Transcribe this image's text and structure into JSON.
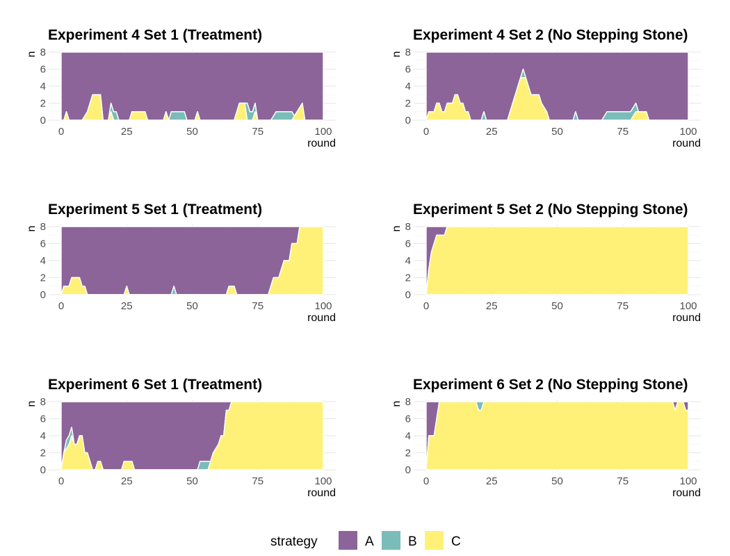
{
  "colors": {
    "A": "#8C6499",
    "B": "#7ABCB8",
    "C": "#FFF178"
  },
  "legend": {
    "title": "strategy",
    "items": [
      "A",
      "B",
      "C"
    ]
  },
  "chart_data": [
    {
      "type": "area",
      "title": "Experiment 4 Set 1 (Treatment)",
      "xlabel": "round",
      "ylabel": "n",
      "xlim": [
        0,
        100
      ],
      "ylim": [
        0,
        8
      ],
      "xticks": [
        "0",
        "25",
        "50",
        "75",
        "100"
      ],
      "yticks": [
        "0",
        "2",
        "4",
        "6",
        "8"
      ],
      "total": 8,
      "series": [
        {
          "name": "C",
          "points": [
            [
              0,
              0
            ],
            [
              1,
              0
            ],
            [
              2,
              1
            ],
            [
              3,
              0
            ],
            [
              8,
              0
            ],
            [
              10,
              1
            ],
            [
              12,
              3
            ],
            [
              15,
              3
            ],
            [
              16,
              0
            ],
            [
              18,
              0
            ],
            [
              19,
              1
            ],
            [
              20,
              0
            ],
            [
              26,
              0
            ],
            [
              27,
              1
            ],
            [
              32,
              1
            ],
            [
              33,
              0
            ],
            [
              39,
              0
            ],
            [
              40,
              1
            ],
            [
              41,
              0
            ],
            [
              51,
              0
            ],
            [
              52,
              1
            ],
            [
              53,
              0
            ],
            [
              66,
              0
            ],
            [
              68,
              2
            ],
            [
              70,
              2
            ],
            [
              71,
              0
            ],
            [
              73,
              0
            ],
            [
              74,
              1
            ],
            [
              75,
              0
            ],
            [
              88,
              0
            ],
            [
              90,
              1
            ],
            [
              92,
              2
            ],
            [
              93,
              0
            ],
            [
              100,
              0
            ]
          ]
        },
        {
          "name": "B",
          "points": [
            [
              0,
              0
            ],
            [
              18,
              0
            ],
            [
              19,
              1
            ],
            [
              21,
              1
            ],
            [
              22,
              0
            ],
            [
              41,
              0
            ],
            [
              42,
              1
            ],
            [
              47,
              1
            ],
            [
              48,
              0
            ],
            [
              70,
              0
            ],
            [
              71,
              2
            ],
            [
              72,
              1
            ],
            [
              74,
              1
            ],
            [
              75,
              0
            ],
            [
              80,
              0
            ],
            [
              82,
              1
            ],
            [
              88,
              1
            ],
            [
              89,
              0
            ],
            [
              100,
              0
            ]
          ]
        }
      ]
    },
    {
      "type": "area",
      "title": "Experiment 4 Set 2 (No Stepping Stone)",
      "xlabel": "round",
      "ylabel": "n",
      "xlim": [
        0,
        100
      ],
      "ylim": [
        0,
        8
      ],
      "xticks": [
        "0",
        "25",
        "50",
        "75",
        "100"
      ],
      "yticks": [
        "0",
        "2",
        "4",
        "6",
        "8"
      ],
      "total": 8,
      "series": [
        {
          "name": "C",
          "points": [
            [
              0,
              0
            ],
            [
              1,
              1
            ],
            [
              3,
              1
            ],
            [
              4,
              2
            ],
            [
              5,
              2
            ],
            [
              6,
              1
            ],
            [
              7,
              1
            ],
            [
              8,
              2
            ],
            [
              10,
              2
            ],
            [
              11,
              3
            ],
            [
              12,
              3
            ],
            [
              13,
              2
            ],
            [
              14,
              2
            ],
            [
              15,
              1
            ],
            [
              16,
              1
            ],
            [
              17,
              0
            ],
            [
              31,
              0
            ],
            [
              33,
              2
            ],
            [
              35,
              4
            ],
            [
              36,
              5
            ],
            [
              38,
              5
            ],
            [
              40,
              3
            ],
            [
              43,
              3
            ],
            [
              44,
              2
            ],
            [
              46,
              1
            ],
            [
              47,
              0
            ],
            [
              78,
              0
            ],
            [
              80,
              1
            ],
            [
              84,
              1
            ],
            [
              85,
              0
            ],
            [
              100,
              0
            ]
          ]
        },
        {
          "name": "B",
          "points": [
            [
              0,
              0
            ],
            [
              21,
              0
            ],
            [
              22,
              1
            ],
            [
              23,
              0
            ],
            [
              36,
              0
            ],
            [
              37,
              1
            ],
            [
              38,
              0
            ],
            [
              56,
              0
            ],
            [
              57,
              1
            ],
            [
              58,
              0
            ],
            [
              67,
              0
            ],
            [
              69,
              1
            ],
            [
              80,
              1
            ],
            [
              81,
              0
            ],
            [
              100,
              0
            ]
          ]
        }
      ]
    },
    {
      "type": "area",
      "title": "Experiment 5 Set 1 (Treatment)",
      "xlabel": "round",
      "ylabel": "n",
      "xlim": [
        0,
        100
      ],
      "ylim": [
        0,
        8
      ],
      "xticks": [
        "0",
        "25",
        "50",
        "75",
        "100"
      ],
      "yticks": [
        "0",
        "2",
        "4",
        "6",
        "8"
      ],
      "total": 8,
      "series": [
        {
          "name": "C",
          "points": [
            [
              0,
              0
            ],
            [
              1,
              1
            ],
            [
              3,
              1
            ],
            [
              4,
              2
            ],
            [
              7,
              2
            ],
            [
              8,
              1
            ],
            [
              9,
              1
            ],
            [
              10,
              0
            ],
            [
              24,
              0
            ],
            [
              25,
              1
            ],
            [
              26,
              0
            ],
            [
              63,
              0
            ],
            [
              64,
              1
            ],
            [
              66,
              1
            ],
            [
              67,
              0
            ],
            [
              79,
              0
            ],
            [
              81,
              2
            ],
            [
              83,
              2
            ],
            [
              85,
              4
            ],
            [
              87,
              4
            ],
            [
              88,
              6
            ],
            [
              90,
              6
            ],
            [
              91,
              8
            ],
            [
              100,
              8
            ]
          ]
        },
        {
          "name": "B",
          "points": [
            [
              0,
              0
            ],
            [
              42,
              0
            ],
            [
              43,
              1
            ],
            [
              44,
              0
            ],
            [
              100,
              0
            ]
          ]
        }
      ]
    },
    {
      "type": "area",
      "title": "Experiment 5 Set 2 (No Stepping Stone)",
      "xlabel": "round",
      "ylabel": "n",
      "xlim": [
        0,
        100
      ],
      "ylim": [
        0,
        8
      ],
      "xticks": [
        "0",
        "25",
        "50",
        "75",
        "100"
      ],
      "yticks": [
        "0",
        "2",
        "4",
        "6",
        "8"
      ],
      "total": 8,
      "series": [
        {
          "name": "C",
          "points": [
            [
              0,
              0
            ],
            [
              1,
              3
            ],
            [
              2,
              5
            ],
            [
              3,
              6
            ],
            [
              4,
              7
            ],
            [
              7,
              7
            ],
            [
              8,
              8
            ],
            [
              100,
              8
            ]
          ]
        },
        {
          "name": "B",
          "points": [
            [
              0,
              0
            ],
            [
              100,
              0
            ]
          ]
        }
      ]
    },
    {
      "type": "area",
      "title": "Experiment 6 Set 1 (Treatment)",
      "xlabel": "round",
      "ylabel": "n",
      "xlim": [
        0,
        100
      ],
      "ylim": [
        0,
        8
      ],
      "xticks": [
        "0",
        "25",
        "50",
        "75",
        "100"
      ],
      "yticks": [
        "0",
        "2",
        "4",
        "6",
        "8"
      ],
      "total": 8,
      "series": [
        {
          "name": "C",
          "points": [
            [
              0,
              0
            ],
            [
              1,
              2
            ],
            [
              3,
              3
            ],
            [
              4,
              4
            ],
            [
              5,
              3
            ],
            [
              6,
              3
            ],
            [
              7,
              4
            ],
            [
              8,
              4
            ],
            [
              9,
              2
            ],
            [
              10,
              2
            ],
            [
              11,
              1
            ],
            [
              12,
              0
            ],
            [
              13,
              0
            ],
            [
              14,
              1
            ],
            [
              15,
              1
            ],
            [
              16,
              0
            ],
            [
              23,
              0
            ],
            [
              24,
              1
            ],
            [
              27,
              1
            ],
            [
              28,
              0
            ],
            [
              56,
              0
            ],
            [
              58,
              2
            ],
            [
              60,
              3
            ],
            [
              61,
              4
            ],
            [
              62,
              4
            ],
            [
              63,
              7
            ],
            [
              64,
              7
            ],
            [
              65,
              8
            ],
            [
              100,
              8
            ]
          ]
        },
        {
          "name": "B",
          "points": [
            [
              0,
              0
            ],
            [
              1,
              0
            ],
            [
              2,
              1
            ],
            [
              4,
              1
            ],
            [
              5,
              0
            ],
            [
              52,
              0
            ],
            [
              53,
              1
            ],
            [
              56,
              1
            ],
            [
              57,
              0
            ],
            [
              100,
              0
            ]
          ]
        }
      ]
    },
    {
      "type": "area",
      "title": "Experiment 6 Set 2 (No Stepping Stone)",
      "xlabel": "round",
      "ylabel": "n",
      "xlim": [
        0,
        100
      ],
      "ylim": [
        0,
        8
      ],
      "xticks": [
        "0",
        "25",
        "50",
        "75",
        "100"
      ],
      "yticks": [
        "0",
        "2",
        "4",
        "6",
        "8"
      ],
      "total": 8,
      "series": [
        {
          "name": "C",
          "points": [
            [
              0,
              0
            ],
            [
              1,
              4
            ],
            [
              3,
              4
            ],
            [
              5,
              8
            ],
            [
              19,
              8
            ],
            [
              20,
              7
            ],
            [
              21,
              7
            ],
            [
              22,
              8
            ],
            [
              94,
              8
            ],
            [
              95,
              7
            ],
            [
              96,
              8
            ],
            [
              98,
              8
            ],
            [
              99,
              7
            ],
            [
              100,
              7
            ]
          ]
        },
        {
          "name": "B",
          "points": [
            [
              0,
              0
            ],
            [
              19,
              0
            ],
            [
              20,
              1
            ],
            [
              21,
              1
            ],
            [
              22,
              0
            ],
            [
              100,
              0
            ]
          ]
        }
      ]
    }
  ]
}
